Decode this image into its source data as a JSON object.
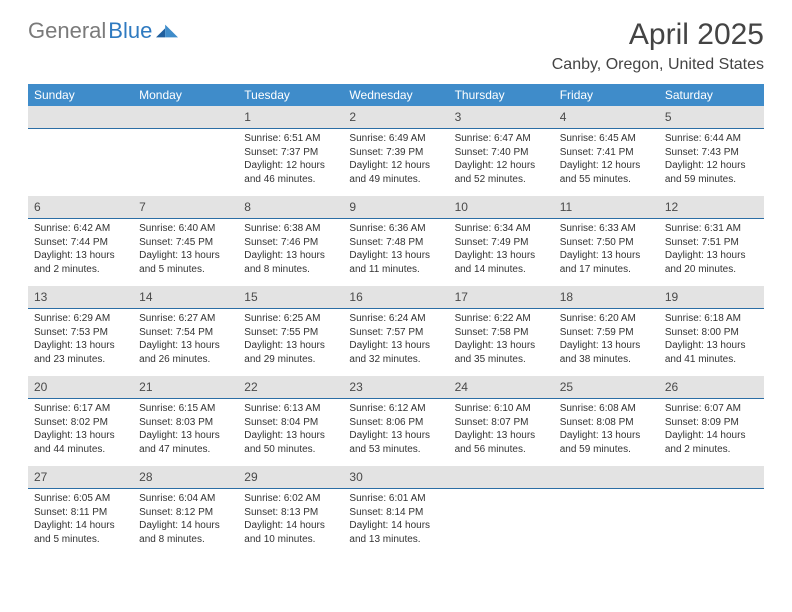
{
  "logo": {
    "gray": "General",
    "blue": "Blue"
  },
  "title": "April 2025",
  "location": "Canby, Oregon, United States",
  "colors": {
    "header_bg": "#3f8cca",
    "daynum_bg": "#e3e3e3",
    "rule": "#2c6ea5",
    "text": "#333333",
    "logo_gray": "#7a7a7a",
    "logo_blue": "#2f7ac0"
  },
  "weekdays": [
    "Sunday",
    "Monday",
    "Tuesday",
    "Wednesday",
    "Thursday",
    "Friday",
    "Saturday"
  ],
  "weeks": [
    [
      null,
      null,
      {
        "d": "1",
        "sr": "6:51 AM",
        "ss": "7:37 PM",
        "dl": "12 hours and 46 minutes."
      },
      {
        "d": "2",
        "sr": "6:49 AM",
        "ss": "7:39 PM",
        "dl": "12 hours and 49 minutes."
      },
      {
        "d": "3",
        "sr": "6:47 AM",
        "ss": "7:40 PM",
        "dl": "12 hours and 52 minutes."
      },
      {
        "d": "4",
        "sr": "6:45 AM",
        "ss": "7:41 PM",
        "dl": "12 hours and 55 minutes."
      },
      {
        "d": "5",
        "sr": "6:44 AM",
        "ss": "7:43 PM",
        "dl": "12 hours and 59 minutes."
      }
    ],
    [
      {
        "d": "6",
        "sr": "6:42 AM",
        "ss": "7:44 PM",
        "dl": "13 hours and 2 minutes."
      },
      {
        "d": "7",
        "sr": "6:40 AM",
        "ss": "7:45 PM",
        "dl": "13 hours and 5 minutes."
      },
      {
        "d": "8",
        "sr": "6:38 AM",
        "ss": "7:46 PM",
        "dl": "13 hours and 8 minutes."
      },
      {
        "d": "9",
        "sr": "6:36 AM",
        "ss": "7:48 PM",
        "dl": "13 hours and 11 minutes."
      },
      {
        "d": "10",
        "sr": "6:34 AM",
        "ss": "7:49 PM",
        "dl": "13 hours and 14 minutes."
      },
      {
        "d": "11",
        "sr": "6:33 AM",
        "ss": "7:50 PM",
        "dl": "13 hours and 17 minutes."
      },
      {
        "d": "12",
        "sr": "6:31 AM",
        "ss": "7:51 PM",
        "dl": "13 hours and 20 minutes."
      }
    ],
    [
      {
        "d": "13",
        "sr": "6:29 AM",
        "ss": "7:53 PM",
        "dl": "13 hours and 23 minutes."
      },
      {
        "d": "14",
        "sr": "6:27 AM",
        "ss": "7:54 PM",
        "dl": "13 hours and 26 minutes."
      },
      {
        "d": "15",
        "sr": "6:25 AM",
        "ss": "7:55 PM",
        "dl": "13 hours and 29 minutes."
      },
      {
        "d": "16",
        "sr": "6:24 AM",
        "ss": "7:57 PM",
        "dl": "13 hours and 32 minutes."
      },
      {
        "d": "17",
        "sr": "6:22 AM",
        "ss": "7:58 PM",
        "dl": "13 hours and 35 minutes."
      },
      {
        "d": "18",
        "sr": "6:20 AM",
        "ss": "7:59 PM",
        "dl": "13 hours and 38 minutes."
      },
      {
        "d": "19",
        "sr": "6:18 AM",
        "ss": "8:00 PM",
        "dl": "13 hours and 41 minutes."
      }
    ],
    [
      {
        "d": "20",
        "sr": "6:17 AM",
        "ss": "8:02 PM",
        "dl": "13 hours and 44 minutes."
      },
      {
        "d": "21",
        "sr": "6:15 AM",
        "ss": "8:03 PM",
        "dl": "13 hours and 47 minutes."
      },
      {
        "d": "22",
        "sr": "6:13 AM",
        "ss": "8:04 PM",
        "dl": "13 hours and 50 minutes."
      },
      {
        "d": "23",
        "sr": "6:12 AM",
        "ss": "8:06 PM",
        "dl": "13 hours and 53 minutes."
      },
      {
        "d": "24",
        "sr": "6:10 AM",
        "ss": "8:07 PM",
        "dl": "13 hours and 56 minutes."
      },
      {
        "d": "25",
        "sr": "6:08 AM",
        "ss": "8:08 PM",
        "dl": "13 hours and 59 minutes."
      },
      {
        "d": "26",
        "sr": "6:07 AM",
        "ss": "8:09 PM",
        "dl": "14 hours and 2 minutes."
      }
    ],
    [
      {
        "d": "27",
        "sr": "6:05 AM",
        "ss": "8:11 PM",
        "dl": "14 hours and 5 minutes."
      },
      {
        "d": "28",
        "sr": "6:04 AM",
        "ss": "8:12 PM",
        "dl": "14 hours and 8 minutes."
      },
      {
        "d": "29",
        "sr": "6:02 AM",
        "ss": "8:13 PM",
        "dl": "14 hours and 10 minutes."
      },
      {
        "d": "30",
        "sr": "6:01 AM",
        "ss": "8:14 PM",
        "dl": "14 hours and 13 minutes."
      },
      null,
      null,
      null
    ]
  ],
  "labels": {
    "sunrise": "Sunrise:",
    "sunset": "Sunset:",
    "daylight": "Daylight:"
  }
}
